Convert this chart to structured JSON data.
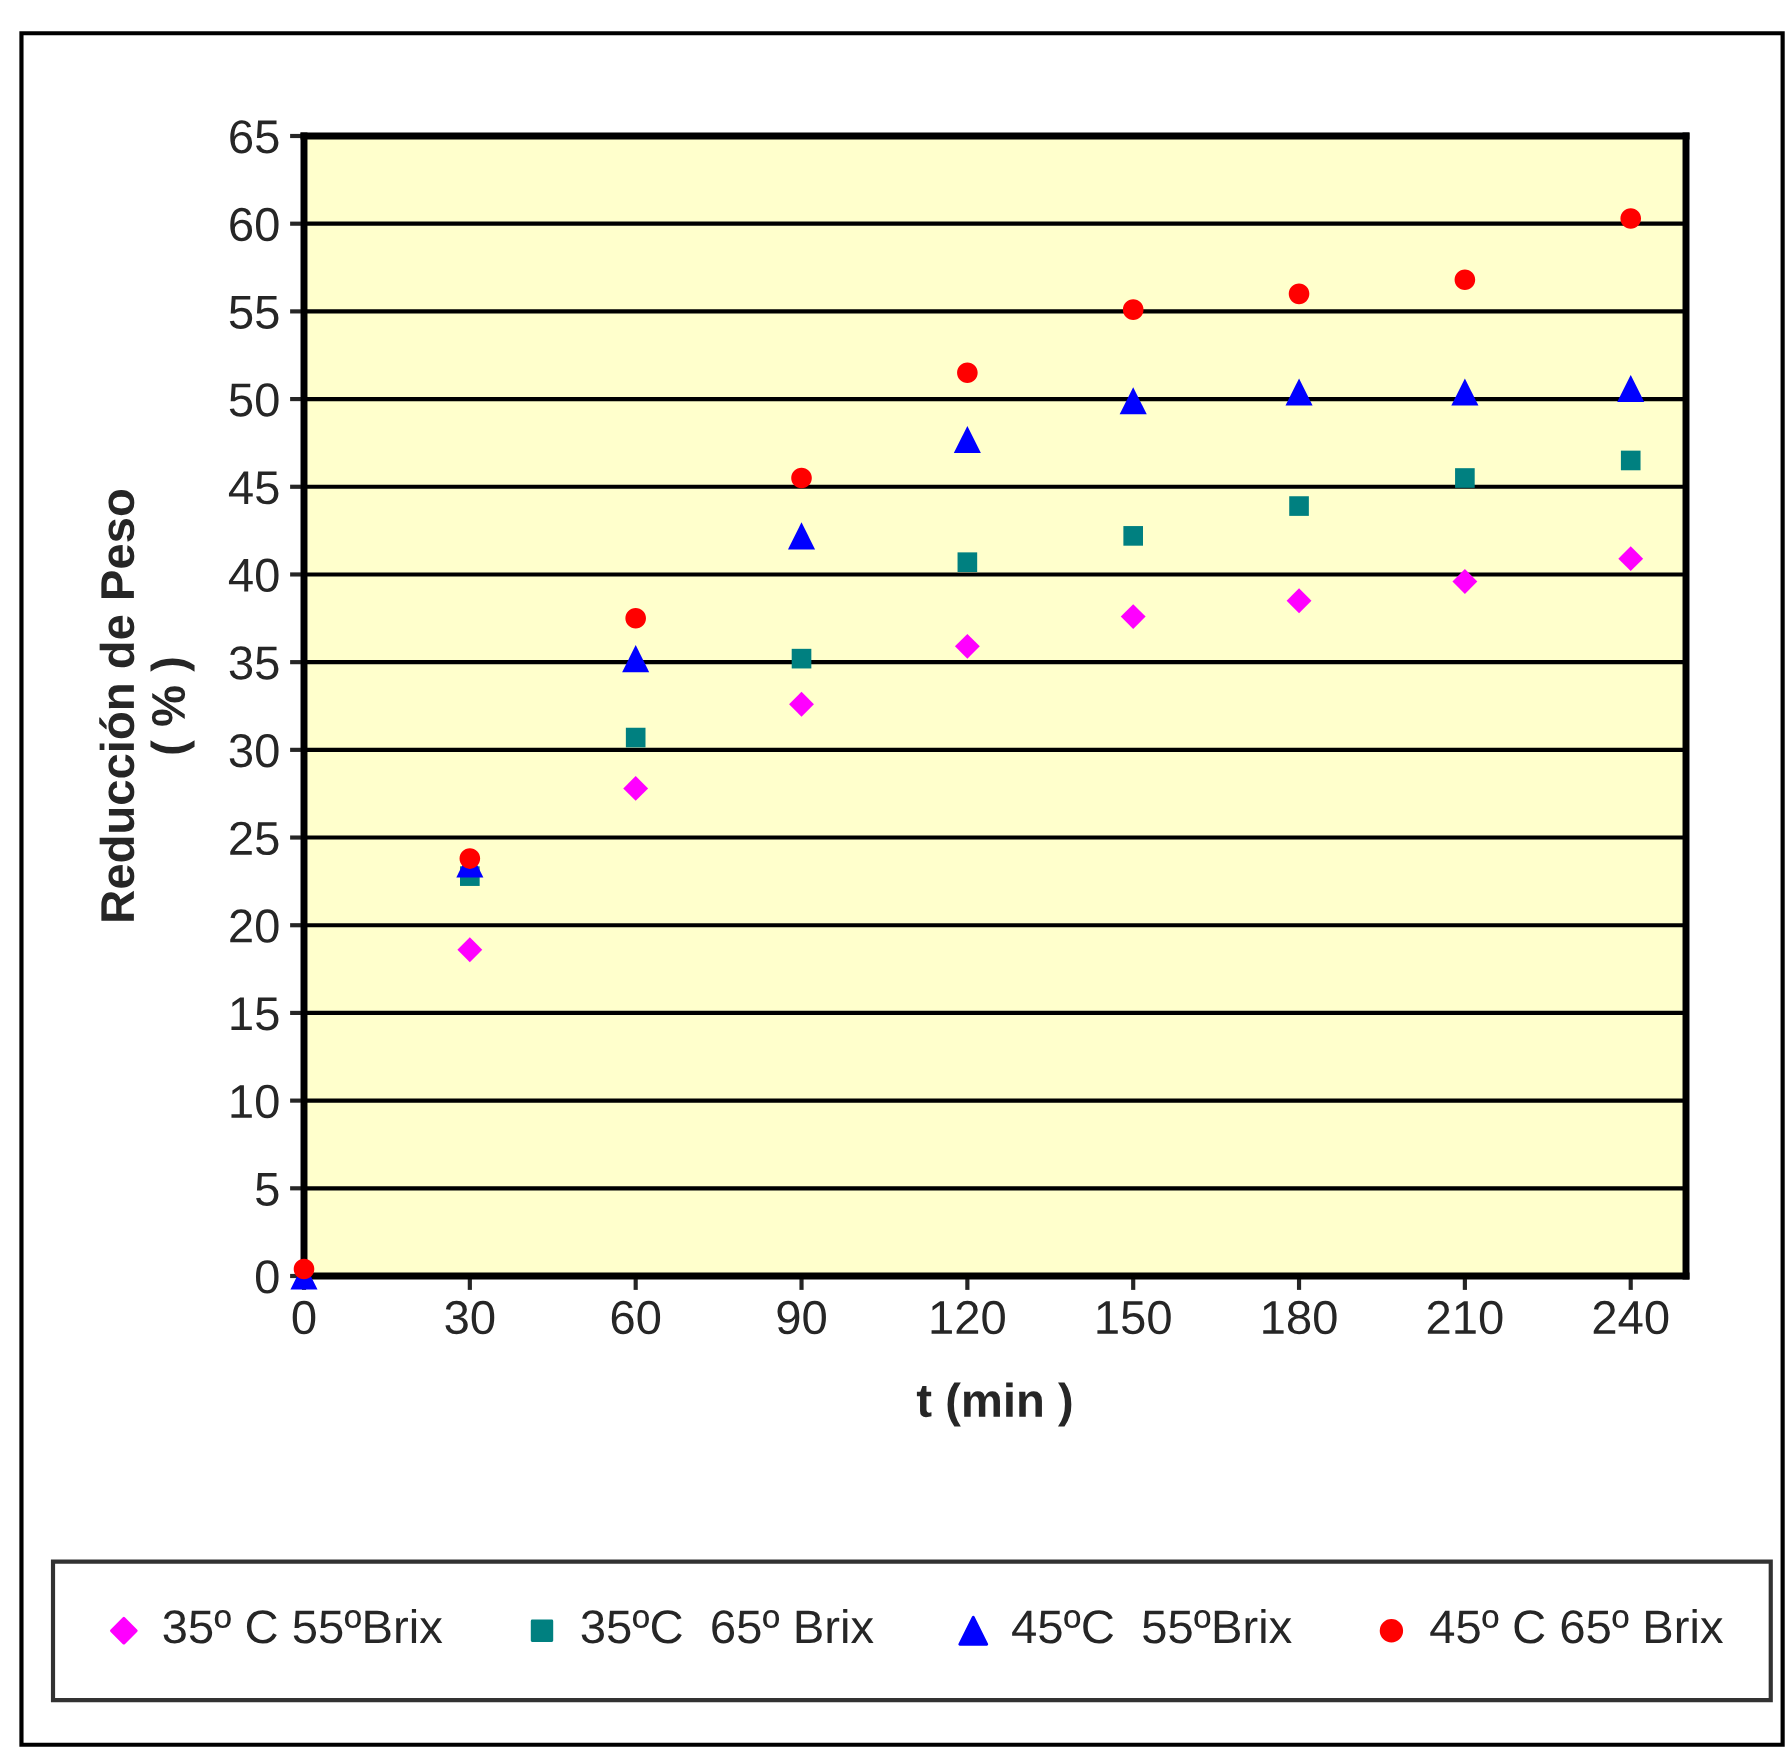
{
  "chart_data": {
    "type": "scatter",
    "xlabel": "t (min )",
    "ylabel": "Reducción de Peso\n( % )",
    "x": [
      0,
      30,
      60,
      90,
      120,
      150,
      180,
      210,
      240
    ],
    "series": [
      {
        "name": "35º C 55ºBrix",
        "color": "#ff00ff",
        "marker": "diamond",
        "values": [
          null,
          18.6,
          27.8,
          32.6,
          35.9,
          37.6,
          38.5,
          39.6,
          40.9
        ]
      },
      {
        "name": "35ºC  65º Brix",
        "color": "#008080",
        "marker": "square",
        "values": [
          null,
          22.8,
          30.7,
          35.2,
          40.7,
          42.2,
          43.9,
          45.5,
          46.5
        ]
      },
      {
        "name": "45ºC  55ºBrix",
        "color": "#0000ff",
        "marker": "triangle",
        "values": [
          0,
          23.5,
          35.2,
          42.2,
          47.7,
          49.9,
          50.4,
          50.4,
          50.6
        ]
      },
      {
        "name": "45º C 65º Brix",
        "color": "#ff0000",
        "marker": "circle",
        "values": [
          0.4,
          23.8,
          37.5,
          45.5,
          51.5,
          55.1,
          56.0,
          56.8,
          60.3
        ]
      }
    ],
    "xlim": [
      0,
      250
    ],
    "xticks": [
      0,
      30,
      60,
      90,
      120,
      150,
      180,
      210,
      240
    ],
    "ylim": [
      0,
      65
    ],
    "yticks": [
      0,
      5,
      10,
      15,
      20,
      25,
      30,
      35,
      40,
      45,
      50,
      55,
      60,
      65
    ],
    "grid": "y",
    "legend": "bottom"
  }
}
